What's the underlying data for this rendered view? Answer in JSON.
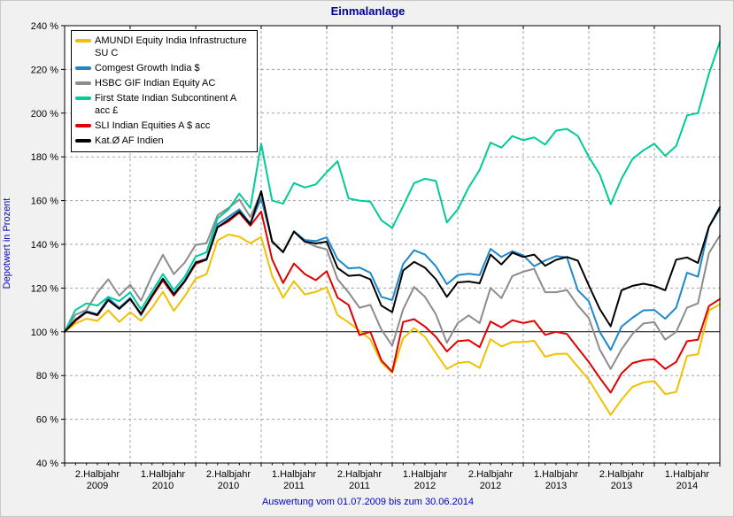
{
  "chart_data": {
    "type": "line",
    "title": "Einmalanlage",
    "ylabel": "Depotwert in Prozent",
    "caption": "Auswertung vom 01.07.2009 bis zum 30.06.2014",
    "ylim": [
      40,
      240
    ],
    "ytick_step": 20,
    "yticks": [
      "240 %",
      "220 %",
      "200 %",
      "180 %",
      "160 %",
      "140 %",
      "120 %",
      "100 %",
      "80 %",
      "60 %",
      "40 %"
    ],
    "baseline_value": 100,
    "x_months": 60,
    "half_year_intervals": 10,
    "grid": "dashed",
    "legend_position": "top-left",
    "xticks": [
      {
        "line1": "2.Halbjahr",
        "line2": "2009"
      },
      {
        "line1": "1.Halbjahr",
        "line2": "2010"
      },
      {
        "line1": "2.Halbjahr",
        "line2": "2010"
      },
      {
        "line1": "1.Halbjahr",
        "line2": "2011"
      },
      {
        "line1": "2.Halbjahr",
        "line2": "2011"
      },
      {
        "line1": "1.Halbjahr",
        "line2": "2012"
      },
      {
        "line1": "2.Halbjahr",
        "line2": "2012"
      },
      {
        "line1": "1.Halbjahr",
        "line2": "2013"
      },
      {
        "line1": "2.Halbjahr",
        "line2": "2013"
      },
      {
        "line1": "1.Halbjahr",
        "line2": "2014"
      }
    ],
    "series": [
      {
        "name": "AMUNDI Equity India Infrastructure SU C",
        "color": "#EFC100",
        "values": [
          100,
          103.8,
          106,
          105,
          109.8,
          104.5,
          109,
          105,
          111,
          118.3,
          109.6,
          116.3,
          124.3,
          126.4,
          141.8,
          144.5,
          143.5,
          140.5,
          143.3,
          125.6,
          115.6,
          123.1,
          117.1,
          118.3,
          120.3,
          107.6,
          104.3,
          100.5,
          96.5,
          86,
          81.3,
          97,
          101.7,
          97.7,
          90.3,
          83,
          85.7,
          86.3,
          83.5,
          96.6,
          93.3,
          95.3,
          95.3,
          95.9,
          88.6,
          89.9,
          90,
          84,
          78.1,
          70,
          62,
          69,
          74.8,
          76.8,
          77.5,
          71.5,
          72.5,
          89,
          89.7,
          109.8,
          112.5
        ]
      },
      {
        "name": "Comgest Growth India $",
        "color": "#1E88CB",
        "values": [
          100,
          105.5,
          109.5,
          108,
          115.5,
          111,
          115.5,
          107.5,
          116.5,
          124.3,
          117.5,
          123.5,
          131.7,
          133.5,
          149.2,
          152.5,
          156,
          149.5,
          161,
          141.5,
          136.5,
          146,
          142,
          141.5,
          143.2,
          133.2,
          129,
          129.4,
          127,
          116,
          114.5,
          131,
          137.3,
          135.3,
          130,
          121.8,
          125.9,
          126.5,
          125.9,
          137.9,
          134.2,
          136.9,
          135,
          130,
          132.6,
          134.6,
          134,
          119,
          114,
          100,
          91.7,
          102.4,
          106.4,
          109.8,
          110,
          106,
          111,
          127,
          125.2,
          148,
          156
        ]
      },
      {
        "name": "HSBC GIF Indian Equity AC",
        "color": "#8C8C8C",
        "values": [
          100,
          107.8,
          110,
          118,
          124,
          116.5,
          121.5,
          114.3,
          125.7,
          135.2,
          126.4,
          131.7,
          139.7,
          140.5,
          153.3,
          156.6,
          160.5,
          152.5,
          163.5,
          141.6,
          136.4,
          145.8,
          141.2,
          139,
          137.7,
          124,
          118,
          111,
          112.3,
          101,
          93.6,
          110.3,
          120.5,
          116,
          108,
          95,
          104,
          107.5,
          104,
          120.1,
          115.4,
          125.5,
          127.5,
          128.8,
          118.1,
          118.1,
          119.1,
          112,
          106.3,
          92,
          83,
          92,
          99,
          103.8,
          104.4,
          96.4,
          100,
          111,
          113,
          136,
          144
        ]
      },
      {
        "name": "First State Indian Subcontinent A acc £",
        "color": "#00CB98",
        "values": [
          100,
          110,
          113,
          112,
          116,
          114,
          118,
          110.3,
          118.4,
          126.4,
          119.1,
          125.2,
          134.4,
          136.4,
          151.9,
          155.9,
          163.2,
          156.6,
          186,
          160,
          158.6,
          168,
          166,
          167.4,
          173,
          178,
          161,
          160,
          159.5,
          151,
          147.5,
          157.5,
          168,
          170,
          169,
          150,
          156,
          166,
          174,
          186.5,
          184.2,
          189.5,
          187.6,
          188.9,
          185.6,
          192,
          192.8,
          189.5,
          180,
          172,
          158.3,
          170,
          179,
          183,
          186,
          180.5,
          185,
          199,
          200,
          218,
          232.5
        ]
      },
      {
        "name": "SLI Indian Equities A $ acc",
        "color": "#E10000",
        "values": [
          100,
          105,
          109,
          107.5,
          114.5,
          110.5,
          115,
          108,
          116,
          123.5,
          116.5,
          123,
          131,
          133,
          147.8,
          150.5,
          154.5,
          148.5,
          155,
          133.2,
          122.3,
          131.2,
          126.4,
          123.6,
          127.7,
          115.6,
          112.3,
          98.5,
          100,
          87,
          81.7,
          104.5,
          105.8,
          102.4,
          97.7,
          91,
          95.7,
          96.2,
          93,
          104.7,
          102,
          105.3,
          104,
          105,
          98.6,
          100,
          99,
          92.5,
          86.2,
          79,
          72.2,
          81,
          85.7,
          87,
          87.5,
          83,
          86.2,
          95.7,
          96.4,
          111.8,
          115
        ]
      },
      {
        "name": "Kat.Ø AF Indien",
        "color": "#000000",
        "values": [
          100,
          105.5,
          109,
          107.8,
          114.5,
          110.5,
          115,
          108.3,
          116.5,
          124.3,
          117.1,
          123.1,
          131.7,
          133,
          147.8,
          151.2,
          155,
          149.2,
          164.3,
          141.2,
          136.4,
          145.8,
          141.2,
          140.4,
          141.2,
          129.2,
          125.6,
          126,
          124,
          112,
          109,
          128,
          132,
          129.3,
          124,
          116,
          122.6,
          123,
          122.2,
          135.3,
          130.8,
          136.2,
          134.2,
          135.3,
          130.2,
          132.9,
          134.2,
          132.5,
          121.2,
          110.5,
          102.5,
          119,
          121,
          122,
          121,
          119,
          133,
          134,
          131.5,
          148,
          157
        ]
      }
    ],
    "colors": {
      "title": "#0000a0",
      "axis_label": "#0000c8",
      "caption": "#0000c8",
      "grid": "#a3a3a3",
      "frame": "#000000",
      "plot_bg": "#ffffff",
      "page_bg": "#f1f1f1",
      "tick_text": "#000000"
    }
  }
}
